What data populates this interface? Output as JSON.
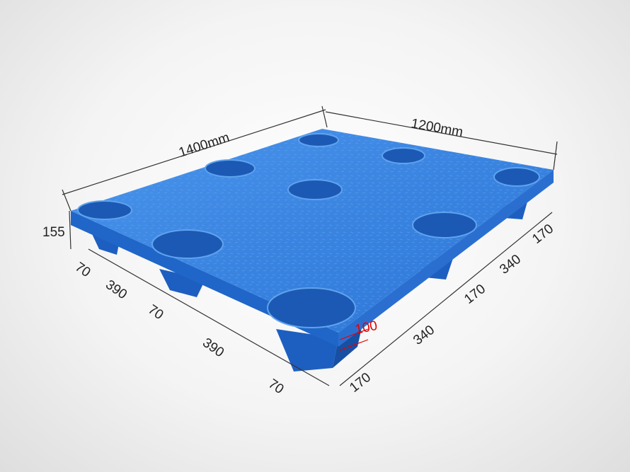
{
  "colors": {
    "pallet": "#2f7de0",
    "pallet_dark": "#1a5bb8",
    "dimension_line": "#333333",
    "highlight": "#e60000"
  },
  "dimensions": {
    "length": "1400mm",
    "width": "1200mm",
    "height": "155",
    "left_side": [
      "70",
      "390",
      "70",
      "390",
      "70"
    ],
    "right_side": [
      "170",
      "340",
      "170",
      "340",
      "170"
    ],
    "leg_height": "100"
  }
}
